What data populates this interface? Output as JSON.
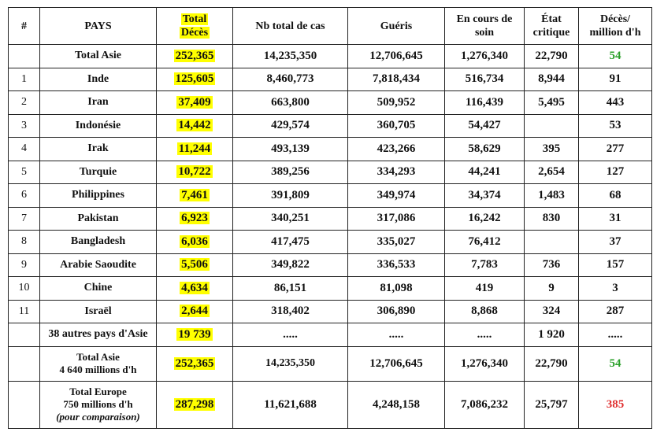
{
  "headers": {
    "num": "#",
    "country": "PAYS",
    "deaths_1": "Total",
    "deaths_2": "Décès",
    "cases": "Nb total de cas",
    "recovered": "Guéris",
    "active_1": "En cours de",
    "active_2": "soin",
    "critical_1": "État",
    "critical_2": "critique",
    "per_million_1": "Décès/",
    "per_million_2": "million d'h"
  },
  "top_total": {
    "label": "Total  Asie",
    "deaths": "252,365",
    "cases": "14,235,350",
    "recovered": "12,706,645",
    "active": "1,276,340",
    "critical": "22,790",
    "per_million": "54"
  },
  "rows": [
    {
      "num": "1",
      "country": "Inde",
      "deaths": "125,605",
      "cases": "8,460,773",
      "recovered": "7,818,434",
      "active": "516,734",
      "critical": "8,944",
      "per_million": "91"
    },
    {
      "num": "2",
      "country": "Iran",
      "deaths": "37,409",
      "cases": "663,800",
      "recovered": "509,952",
      "active": "116,439",
      "critical": "5,495",
      "per_million": "443"
    },
    {
      "num": "3",
      "country": "Indonésie",
      "deaths": "14,442",
      "cases": "429,574",
      "recovered": "360,705",
      "active": "54,427",
      "critical": "",
      "per_million": "53"
    },
    {
      "num": "4",
      "country": "Irak",
      "deaths": "11,244",
      "cases": "493,139",
      "recovered": "423,266",
      "active": "58,629",
      "critical": "395",
      "per_million": "277"
    },
    {
      "num": "5",
      "country": "Turquie",
      "deaths": "10,722",
      "cases": "389,256",
      "recovered": "334,293",
      "active": "44,241",
      "critical": "2,654",
      "per_million": "127"
    },
    {
      "num": "6",
      "country": "Philippines",
      "deaths": "7,461",
      "cases": "391,809",
      "recovered": "349,974",
      "active": "34,374",
      "critical": "1,483",
      "per_million": "68"
    },
    {
      "num": "7",
      "country": "Pakistan",
      "deaths": "6,923",
      "cases": "340,251",
      "recovered": "317,086",
      "active": "16,242",
      "critical": "830",
      "per_million": "31"
    },
    {
      "num": "8",
      "country": "Bangladesh",
      "deaths": "6,036",
      "cases": "417,475",
      "recovered": "335,027",
      "active": "76,412",
      "critical": "",
      "per_million": "37"
    },
    {
      "num": "9",
      "country": "Arabie Saoudite",
      "deaths": "5,506",
      "cases": "349,822",
      "recovered": "336,533",
      "active": "7,783",
      "critical": "736",
      "per_million": "157"
    },
    {
      "num": "10",
      "country": "Chine",
      "deaths": "4,634",
      "cases": "86,151",
      "recovered": "81,098",
      "active": "419",
      "critical": "9",
      "per_million": "3"
    },
    {
      "num": "11",
      "country": "Israël",
      "deaths": "2,644",
      "cases": "318,402",
      "recovered": "306,890",
      "active": "8,868",
      "critical": "324",
      "per_million": "287"
    }
  ],
  "others": {
    "country": "38 autres pays d'Asie",
    "deaths": "19 739",
    "cases": ".....",
    "recovered": ".....",
    "active": ".....",
    "critical": "1 920",
    "per_million": "....."
  },
  "asia_total": {
    "label_1": "Total Asie",
    "label_2": "4 640 millions d'h",
    "deaths": "252,365",
    "cases": "14,235,350",
    "recovered": "12,706,645",
    "active": "1,276,340",
    "critical": "22,790",
    "per_million": "54"
  },
  "europe_total": {
    "label_1": "Total Europe",
    "label_2": "750 millions d'h",
    "label_3": "(pour comparaison)",
    "deaths": "287,298",
    "cases": "11,621,688",
    "recovered": "4,248,158",
    "active": "7,086,232",
    "critical": "25,797",
    "per_million": "385"
  },
  "colors": {
    "highlight": "#ffff00",
    "green": "#2aa02a",
    "red": "#e03030"
  }
}
